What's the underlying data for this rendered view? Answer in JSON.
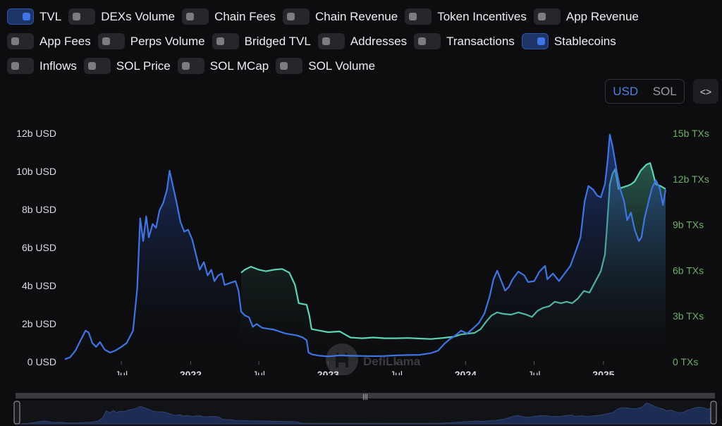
{
  "toggles": [
    [
      {
        "label": "TVL",
        "on": true
      },
      {
        "label": "DEXs Volume",
        "on": false
      },
      {
        "label": "Chain Fees",
        "on": false
      },
      {
        "label": "Chain Revenue",
        "on": false
      },
      {
        "label": "Token Incentives",
        "on": false
      },
      {
        "label": "App Revenue",
        "on": false
      }
    ],
    [
      {
        "label": "App Fees",
        "on": false
      },
      {
        "label": "Perps Volume",
        "on": false
      },
      {
        "label": "Bridged TVL",
        "on": false
      },
      {
        "label": "Addresses",
        "on": false
      },
      {
        "label": "Transactions",
        "on": false
      },
      {
        "label": "Stablecoins",
        "on": true
      }
    ],
    [
      {
        "label": "Inflows",
        "on": false
      },
      {
        "label": "SOL Price",
        "on": false
      },
      {
        "label": "SOL MCap",
        "on": false
      },
      {
        "label": "SOL Volume",
        "on": false
      }
    ]
  ],
  "currency": {
    "usd": "USD",
    "sol": "SOL",
    "selected": "USD"
  },
  "embed_icon": "code-embed-icon",
  "watermark": "DefiLlama",
  "colors": {
    "tvl": "#3f74e3",
    "stablecoins": "#5ed3b4",
    "left_axis": "#d9dbe0",
    "right_axis": "#6fae69",
    "grid": "#1f2024"
  },
  "chart_data": {
    "type": "line",
    "x_ticks": [
      "Jul",
      "2022",
      "Jul",
      "2023",
      "Jul",
      "2024",
      "Jul",
      "2025"
    ],
    "y_left": {
      "ticks": [
        "0 USD",
        "2b USD",
        "4b USD",
        "6b USD",
        "8b USD",
        "10b USD",
        "12b USD"
      ],
      "range": [
        0,
        12
      ]
    },
    "y_right": {
      "ticks": [
        "0 TXs",
        "3b TXs",
        "6b TXs",
        "9b TXs",
        "12b TXs",
        "15b TXs"
      ],
      "range": [
        0,
        15
      ]
    },
    "x_domain": [
      "2021-02-01",
      "2025-06-15"
    ],
    "series": [
      {
        "name": "TVL",
        "axis": "left",
        "points": [
          [
            "2021-02-01",
            0.1
          ],
          [
            "2021-02-15",
            0.2
          ],
          [
            "2021-03-01",
            0.55
          ],
          [
            "2021-03-15",
            1.1
          ],
          [
            "2021-03-28",
            1.6
          ],
          [
            "2021-04-05",
            1.5
          ],
          [
            "2021-04-15",
            0.95
          ],
          [
            "2021-04-25",
            0.75
          ],
          [
            "2021-05-05",
            1.0
          ],
          [
            "2021-05-18",
            0.6
          ],
          [
            "2021-06-01",
            0.45
          ],
          [
            "2021-06-15",
            0.55
          ],
          [
            "2021-07-01",
            0.75
          ],
          [
            "2021-07-15",
            0.95
          ],
          [
            "2021-08-01",
            1.6
          ],
          [
            "2021-08-12",
            3.8
          ],
          [
            "2021-08-20",
            7.5
          ],
          [
            "2021-08-28",
            6.3
          ],
          [
            "2021-09-05",
            7.6
          ],
          [
            "2021-09-12",
            6.5
          ],
          [
            "2021-09-22",
            7.2
          ],
          [
            "2021-10-01",
            7.0
          ],
          [
            "2021-10-10",
            7.9
          ],
          [
            "2021-10-20",
            8.3
          ],
          [
            "2021-10-30",
            9.0
          ],
          [
            "2021-11-06",
            10.0
          ],
          [
            "2021-11-15",
            9.2
          ],
          [
            "2021-11-25",
            8.3
          ],
          [
            "2021-12-05",
            7.3
          ],
          [
            "2021-12-15",
            6.8
          ],
          [
            "2021-12-25",
            6.9
          ],
          [
            "2022-01-05",
            6.4
          ],
          [
            "2022-01-15",
            5.6
          ],
          [
            "2022-01-25",
            4.8
          ],
          [
            "2022-02-05",
            5.2
          ],
          [
            "2022-02-15",
            4.5
          ],
          [
            "2022-02-25",
            4.8
          ],
          [
            "2022-03-05",
            4.2
          ],
          [
            "2022-03-15",
            4.5
          ],
          [
            "2022-03-25",
            4.6
          ],
          [
            "2022-04-01",
            4.0
          ],
          [
            "2022-04-15",
            4.1
          ],
          [
            "2022-04-30",
            4.2
          ],
          [
            "2022-05-08",
            3.7
          ],
          [
            "2022-05-15",
            2.6
          ],
          [
            "2022-05-25",
            2.4
          ],
          [
            "2022-06-05",
            2.3
          ],
          [
            "2022-06-15",
            1.8
          ],
          [
            "2022-06-25",
            1.95
          ],
          [
            "2022-07-10",
            1.75
          ],
          [
            "2022-07-25",
            1.7
          ],
          [
            "2022-08-10",
            1.65
          ],
          [
            "2022-08-25",
            1.55
          ],
          [
            "2022-09-10",
            1.45
          ],
          [
            "2022-09-25",
            1.4
          ],
          [
            "2022-10-10",
            1.35
          ],
          [
            "2022-10-25",
            1.25
          ],
          [
            "2022-11-05",
            1.1
          ],
          [
            "2022-11-10",
            0.45
          ],
          [
            "2022-11-20",
            0.35
          ],
          [
            "2022-12-10",
            0.28
          ],
          [
            "2023-01-01",
            0.25
          ],
          [
            "2023-02-01",
            0.3
          ],
          [
            "2023-03-01",
            0.28
          ],
          [
            "2023-04-01",
            0.27
          ],
          [
            "2023-05-01",
            0.26
          ],
          [
            "2023-06-01",
            0.27
          ],
          [
            "2023-07-01",
            0.3
          ],
          [
            "2023-08-01",
            0.32
          ],
          [
            "2023-09-01",
            0.33
          ],
          [
            "2023-10-01",
            0.42
          ],
          [
            "2023-10-20",
            0.55
          ],
          [
            "2023-11-05",
            0.9
          ],
          [
            "2023-11-20",
            1.15
          ],
          [
            "2023-12-05",
            1.35
          ],
          [
            "2023-12-20",
            1.6
          ],
          [
            "2024-01-05",
            1.45
          ],
          [
            "2024-01-20",
            1.7
          ],
          [
            "2024-02-05",
            2.0
          ],
          [
            "2024-02-20",
            2.5
          ],
          [
            "2024-03-05",
            3.4
          ],
          [
            "2024-03-15",
            4.3
          ],
          [
            "2024-03-25",
            4.75
          ],
          [
            "2024-04-05",
            4.2
          ],
          [
            "2024-04-15",
            3.7
          ],
          [
            "2024-04-25",
            3.9
          ],
          [
            "2024-05-05",
            4.3
          ],
          [
            "2024-05-20",
            4.7
          ],
          [
            "2024-06-05",
            4.5
          ],
          [
            "2024-06-15",
            4.15
          ],
          [
            "2024-07-01",
            4.2
          ],
          [
            "2024-07-15",
            4.7
          ],
          [
            "2024-07-30",
            5.0
          ],
          [
            "2024-08-05",
            4.3
          ],
          [
            "2024-08-20",
            4.6
          ],
          [
            "2024-09-05",
            4.2
          ],
          [
            "2024-09-20",
            4.6
          ],
          [
            "2024-10-05",
            5.0
          ],
          [
            "2024-10-20",
            5.8
          ],
          [
            "2024-11-01",
            6.5
          ],
          [
            "2024-11-12",
            8.4
          ],
          [
            "2024-11-22",
            9.2
          ],
          [
            "2024-12-05",
            9.0
          ],
          [
            "2024-12-15",
            8.7
          ],
          [
            "2024-12-25",
            8.6
          ],
          [
            "2025-01-05",
            9.3
          ],
          [
            "2025-01-12",
            10.5
          ],
          [
            "2025-01-18",
            11.9
          ],
          [
            "2025-01-25",
            11.3
          ],
          [
            "2025-02-05",
            10.0
          ],
          [
            "2025-02-15",
            9.0
          ],
          [
            "2025-02-25",
            8.4
          ],
          [
            "2025-03-05",
            7.4
          ],
          [
            "2025-03-15",
            7.8
          ],
          [
            "2025-03-25",
            6.9
          ],
          [
            "2025-04-05",
            6.3
          ],
          [
            "2025-04-12",
            6.5
          ],
          [
            "2025-04-20",
            7.5
          ],
          [
            "2025-05-01",
            8.4
          ],
          [
            "2025-05-10",
            9.1
          ],
          [
            "2025-05-20",
            9.5
          ],
          [
            "2025-05-30",
            9.1
          ],
          [
            "2025-06-08",
            8.2
          ],
          [
            "2025-06-15",
            9.0
          ]
        ]
      },
      {
        "name": "Stablecoins",
        "axis": "right",
        "points": [
          [
            "2022-05-15",
            5.8
          ],
          [
            "2022-05-25",
            6.0
          ],
          [
            "2022-06-10",
            6.2
          ],
          [
            "2022-07-01",
            6.0
          ],
          [
            "2022-07-20",
            5.9
          ],
          [
            "2022-08-10",
            6.0
          ],
          [
            "2022-09-01",
            6.05
          ],
          [
            "2022-09-20",
            5.8
          ],
          [
            "2022-10-05",
            5.0
          ],
          [
            "2022-10-15",
            3.8
          ],
          [
            "2022-11-05",
            3.7
          ],
          [
            "2022-11-12",
            3.0
          ],
          [
            "2022-11-18",
            2.1
          ],
          [
            "2022-12-10",
            2.0
          ],
          [
            "2023-01-01",
            1.9
          ],
          [
            "2023-02-01",
            1.95
          ],
          [
            "2023-03-01",
            1.55
          ],
          [
            "2023-04-01",
            1.5
          ],
          [
            "2023-05-01",
            1.55
          ],
          [
            "2023-06-01",
            1.5
          ],
          [
            "2023-07-01",
            1.5
          ],
          [
            "2023-08-01",
            1.52
          ],
          [
            "2023-09-01",
            1.48
          ],
          [
            "2023-10-01",
            1.45
          ],
          [
            "2023-11-01",
            1.52
          ],
          [
            "2023-12-01",
            1.6
          ],
          [
            "2023-12-20",
            1.75
          ],
          [
            "2024-01-05",
            1.8
          ],
          [
            "2024-01-25",
            1.85
          ],
          [
            "2024-02-10",
            2.1
          ],
          [
            "2024-02-25",
            2.6
          ],
          [
            "2024-03-10",
            3.0
          ],
          [
            "2024-03-25",
            3.2
          ],
          [
            "2024-04-10",
            3.1
          ],
          [
            "2024-05-01",
            3.05
          ],
          [
            "2024-05-20",
            3.2
          ],
          [
            "2024-06-10",
            3.05
          ],
          [
            "2024-06-25",
            2.9
          ],
          [
            "2024-07-10",
            3.3
          ],
          [
            "2024-07-25",
            3.5
          ],
          [
            "2024-08-10",
            3.6
          ],
          [
            "2024-08-25",
            3.9
          ],
          [
            "2024-09-10",
            3.8
          ],
          [
            "2024-09-25",
            3.9
          ],
          [
            "2024-10-10",
            3.8
          ],
          [
            "2024-10-25",
            4.1
          ],
          [
            "2024-11-10",
            4.6
          ],
          [
            "2024-11-25",
            4.5
          ],
          [
            "2024-12-10",
            5.2
          ],
          [
            "2024-12-25",
            5.9
          ],
          [
            "2025-01-05",
            7.0
          ],
          [
            "2025-01-10",
            8.7
          ],
          [
            "2025-01-18",
            11.6
          ],
          [
            "2025-01-25",
            12.3
          ],
          [
            "2025-02-01",
            12.6
          ],
          [
            "2025-02-10",
            11.3
          ],
          [
            "2025-02-20",
            11.4
          ],
          [
            "2025-03-05",
            11.5
          ],
          [
            "2025-03-15",
            11.6
          ],
          [
            "2025-03-25",
            11.8
          ],
          [
            "2025-04-10",
            12.5
          ],
          [
            "2025-04-25",
            12.9
          ],
          [
            "2025-05-05",
            13.0
          ],
          [
            "2025-05-12",
            12.4
          ],
          [
            "2025-05-20",
            11.6
          ],
          [
            "2025-06-01",
            11.5
          ],
          [
            "2025-06-15",
            11.3
          ]
        ]
      }
    ]
  }
}
